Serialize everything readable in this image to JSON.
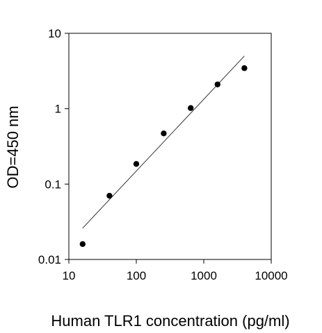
{
  "chart_data": {
    "type": "scatter",
    "title": "",
    "xlabel": "Human TLR1 concentration (pg/ml)",
    "ylabel": "OD=450 nm",
    "xscale": "log",
    "yscale": "log",
    "xlim": [
      10,
      10000
    ],
    "ylim": [
      0.01,
      10
    ],
    "x_ticks": [
      10,
      100,
      1000,
      10000
    ],
    "x_tick_labels": [
      "10",
      "100",
      "1000",
      "10000"
    ],
    "y_ticks": [
      0.01,
      0.1,
      1,
      10
    ],
    "y_tick_labels": [
      "0.01",
      "0.1",
      "1",
      "10"
    ],
    "grid": false,
    "series": [
      {
        "points": [
          {
            "x": 16,
            "y": 0.016
          },
          {
            "x": 40,
            "y": 0.07
          },
          {
            "x": 100,
            "y": 0.185
          },
          {
            "x": 255,
            "y": 0.47
          },
          {
            "x": 640,
            "y": 1.02
          },
          {
            "x": 1600,
            "y": 2.1
          },
          {
            "x": 4000,
            "y": 3.45
          }
        ],
        "marker_color": "#000000"
      }
    ],
    "fit_line": {
      "points": [
        {
          "x": 16,
          "y": 0.026
        },
        {
          "x": 4000,
          "y": 5.0
        }
      ],
      "color": "#333333"
    }
  }
}
